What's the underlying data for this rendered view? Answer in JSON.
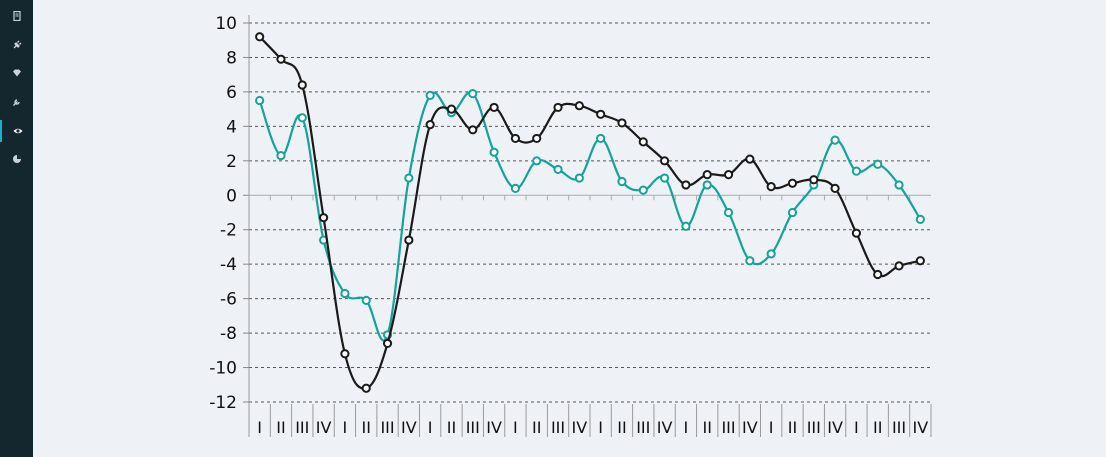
{
  "sidebar": {
    "items": [
      {
        "icon": "document-icon"
      },
      {
        "icon": "plug-icon"
      },
      {
        "icon": "diamond-icon"
      },
      {
        "icon": "wrench-icon"
      },
      {
        "icon": "eye-icon",
        "active": true
      },
      {
        "icon": "pie-chart-icon"
      }
    ],
    "background": "#15272e",
    "accent": "#19b0c8"
  },
  "chart_data": {
    "type": "line",
    "title": "",
    "xlabel": "",
    "ylabel": "",
    "ylim": [
      -12,
      10
    ],
    "yticks": [
      10,
      8,
      6,
      4,
      2,
      0,
      -2,
      -4,
      -6,
      -8,
      -10,
      -12
    ],
    "grid": "horizontal-dashed",
    "categories": [
      "I",
      "II",
      "III",
      "IV",
      "I",
      "II",
      "III",
      "IV",
      "I",
      "II",
      "III",
      "IV",
      "I",
      "II",
      "III",
      "IV",
      "I",
      "II",
      "III",
      "IV",
      "I",
      "II",
      "III",
      "IV",
      "I",
      "II",
      "III",
      "IV",
      "I",
      "II",
      "III",
      "IV"
    ],
    "series": [
      {
        "color": "#1a1a1a",
        "values": [
          9.2,
          7.9,
          6.4,
          -1.3,
          -9.2,
          -11.2,
          -8.6,
          -2.6,
          4.1,
          5.0,
          3.8,
          5.1,
          3.3,
          3.3,
          5.1,
          5.2,
          4.7,
          4.2,
          3.1,
          2.0,
          0.6,
          1.2,
          1.2,
          2.1,
          0.5,
          0.7,
          0.9,
          0.4,
          -2.2,
          -4.6,
          -4.1,
          -3.8
        ]
      },
      {
        "color": "#14a39a",
        "values": [
          5.5,
          2.3,
          4.5,
          -2.6,
          -5.7,
          -6.1,
          -8.1,
          1.0,
          5.8,
          4.8,
          5.9,
          2.5,
          0.4,
          2.0,
          1.5,
          1.0,
          3.3,
          0.8,
          0.3,
          1.0,
          -1.8,
          0.6,
          -1.0,
          -3.8,
          -3.4,
          -1.0,
          0.6,
          3.2,
          1.4,
          1.8,
          0.6,
          -1.4
        ]
      }
    ]
  }
}
